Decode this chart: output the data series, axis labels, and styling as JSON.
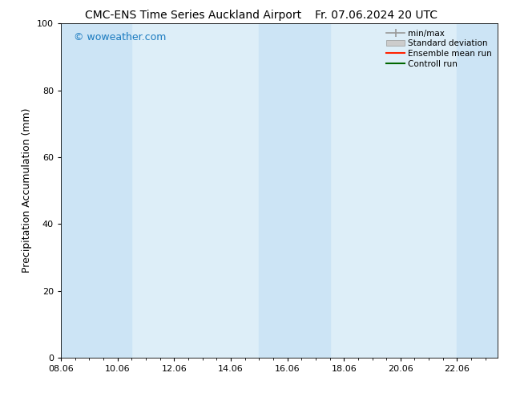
{
  "title_left": "CMC-ENS Time Series Auckland Airport",
  "title_right": "Fr. 07.06.2024 20 UTC",
  "ylabel": "Precipitation Accumulation (mm)",
  "watermark": "© woweather.com",
  "watermark_color": "#1a7abf",
  "ylim": [
    0,
    100
  ],
  "yticks": [
    0,
    20,
    40,
    60,
    80,
    100
  ],
  "xlim_start": 8.06,
  "xlim_end": 23.5,
  "xtick_labels": [
    "08.06",
    "10.06",
    "12.06",
    "14.06",
    "16.06",
    "18.06",
    "20.06",
    "22.06"
  ],
  "xtick_positions": [
    8.06,
    10.06,
    12.06,
    14.06,
    16.06,
    18.06,
    20.06,
    22.06
  ],
  "plot_bg_color": "#ddeef8",
  "shaded_band_color": "#cce4f5",
  "band_regions": [
    [
      8.06,
      9.06
    ],
    [
      9.06,
      10.56
    ],
    [
      15.06,
      16.06
    ],
    [
      16.06,
      17.56
    ],
    [
      22.06,
      23.5
    ]
  ],
  "bg_color": "#ffffff",
  "legend_labels": [
    "min/max",
    "Standard deviation",
    "Ensemble mean run",
    "Controll run"
  ],
  "legend_colors_line": [
    "#999999",
    "#bbbbbb",
    "#ff0000",
    "#008000"
  ],
  "title_fontsize": 10,
  "tick_fontsize": 8,
  "ylabel_fontsize": 9,
  "watermark_fontsize": 9
}
